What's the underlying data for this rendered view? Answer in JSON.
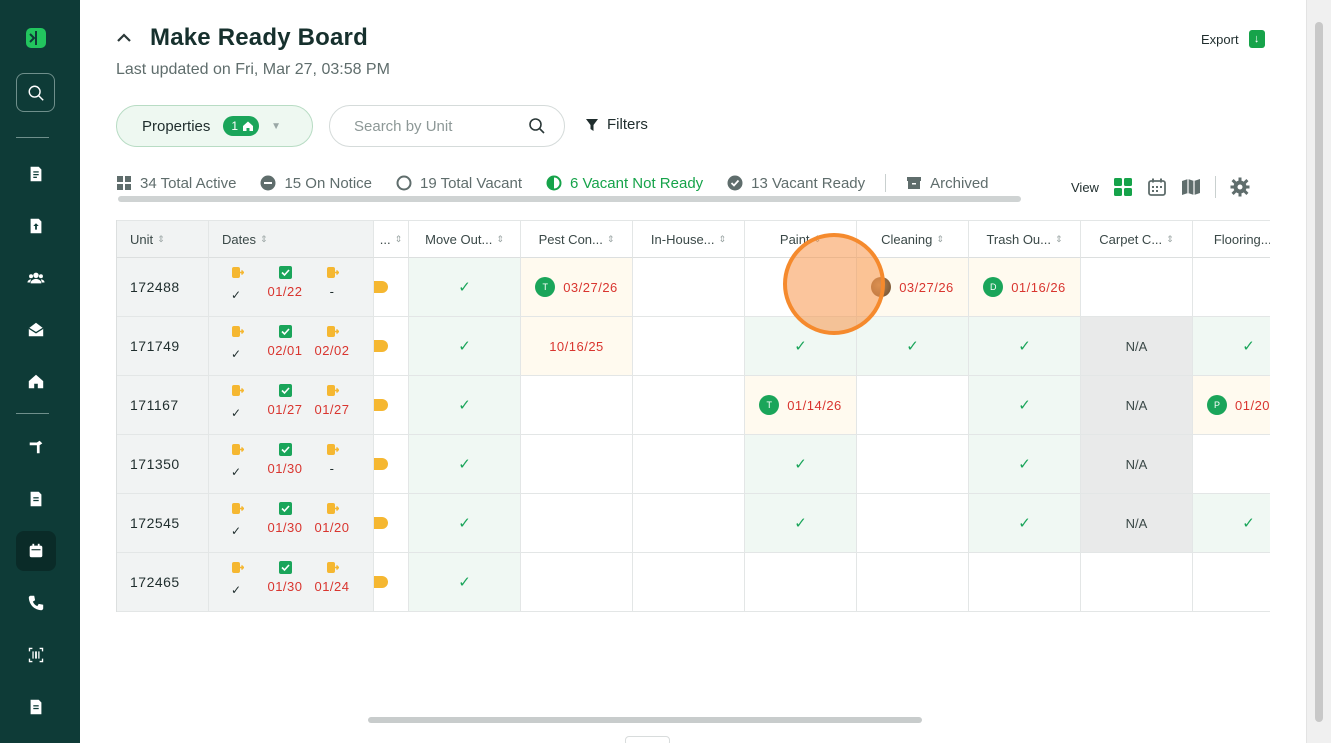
{
  "app": {
    "title": "Make Ready Board",
    "last_updated": "Last updated on Fri, Mar 27, 03:58 PM",
    "export_label": "Export"
  },
  "sidebar": {
    "items": [
      {
        "name": "logo",
        "icon": "logo-icon"
      },
      {
        "name": "search",
        "icon": "search-icon"
      },
      {
        "name": "documents",
        "icon": "document-icon"
      },
      {
        "name": "upload",
        "icon": "upload-file-icon"
      },
      {
        "name": "people",
        "icon": "people-icon"
      },
      {
        "name": "mail",
        "icon": "mail-open-icon"
      },
      {
        "name": "home",
        "icon": "home-icon"
      },
      {
        "name": "tools",
        "icon": "hammer-icon"
      },
      {
        "name": "reports",
        "icon": "document-icon"
      },
      {
        "name": "calendar",
        "icon": "calendar-icon",
        "active": true
      },
      {
        "name": "phone",
        "icon": "phone-icon"
      },
      {
        "name": "scan",
        "icon": "barcode-scan-icon"
      },
      {
        "name": "notes",
        "icon": "document-icon"
      }
    ]
  },
  "toolbar": {
    "properties_label": "Properties",
    "properties_count": "1",
    "search_placeholder": "Search by Unit",
    "filters_label": "Filters"
  },
  "tabs": [
    {
      "label": "34 Total Active",
      "icon": "grid-icon"
    },
    {
      "label": "15 On Notice",
      "icon": "minus-circle-icon"
    },
    {
      "label": "19 Total Vacant",
      "icon": "circle-icon"
    },
    {
      "label": "6 Vacant Not Ready",
      "icon": "half-circle-icon",
      "active": true
    },
    {
      "label": "13 Vacant Ready",
      "icon": "check-circle-icon"
    },
    {
      "label": "Archived",
      "icon": "archive-icon"
    }
  ],
  "view": {
    "label": "View"
  },
  "table": {
    "columns": {
      "unit": "Unit",
      "dates": "Dates",
      "status": "...",
      "move_out": "Move Out...",
      "pest": "Pest Con...",
      "inhouse": "In-House...",
      "paint": "Paint",
      "cleaning": "Cleaning",
      "trash": "Trash Ou...",
      "carpet": "Carpet C...",
      "flooring": "Flooring..."
    },
    "rows": [
      {
        "unit": "172488",
        "move_out_date": "01/22",
        "move_in_date": "-",
        "move_out": "check",
        "pest": {
          "initial": "T",
          "date": "03/27/26"
        },
        "inhouse": "",
        "paint": "",
        "cleaning": {
          "initial": "",
          "date": "03/27/26"
        },
        "trash": {
          "initial": "D",
          "date": "01/16/26"
        },
        "carpet": "",
        "flooring": ""
      },
      {
        "unit": "171749",
        "move_out_date": "02/01",
        "move_in_date": "02/02",
        "move_out": "check",
        "pest": {
          "date": "10/16/25"
        },
        "inhouse": "",
        "paint": "check",
        "cleaning": "check",
        "trash": "check",
        "carpet": "N/A",
        "flooring": "check"
      },
      {
        "unit": "171167",
        "move_out_date": "01/27",
        "move_in_date": "01/27",
        "move_out": "check",
        "pest": "",
        "inhouse": "",
        "paint": {
          "initial": "T",
          "date": "01/14/26"
        },
        "cleaning": "",
        "trash": "check",
        "carpet": "N/A",
        "flooring": {
          "initial": "P",
          "date": "01/20"
        }
      },
      {
        "unit": "171350",
        "move_out_date": "01/30",
        "move_in_date": "-",
        "move_out": "check",
        "pest": "",
        "inhouse": "",
        "paint": "check",
        "cleaning": "",
        "trash": "check",
        "carpet": "N/A",
        "flooring": ""
      },
      {
        "unit": "172545",
        "move_out_date": "01/30",
        "move_in_date": "01/20",
        "move_out": "check",
        "pest": "",
        "inhouse": "",
        "paint": "check",
        "cleaning": "",
        "trash": "check",
        "carpet": "N/A",
        "flooring": "check"
      },
      {
        "unit": "172465",
        "move_out_date": "01/30",
        "move_in_date": "01/24",
        "move_out": "check",
        "pest": "",
        "inhouse": "",
        "paint": "",
        "cleaning": "",
        "trash": "",
        "carpet": "",
        "flooring": ""
      }
    ]
  },
  "colors": {
    "sidebar": "#0e3b37",
    "accent_green": "#16a34a",
    "date_red": "#d9352f",
    "status_yellow": "#f5b731",
    "highlight_orange": "#f58a2d"
  }
}
